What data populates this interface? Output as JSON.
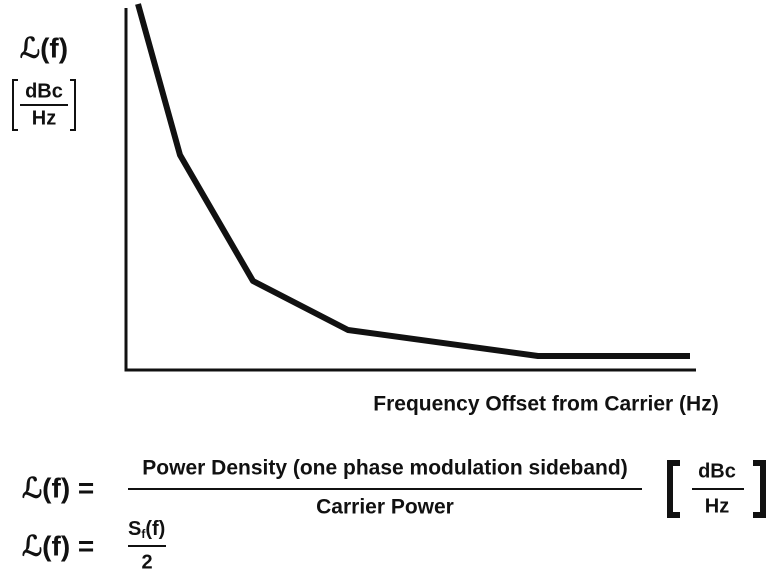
{
  "axis": {
    "y_label": "ℒ(f)",
    "y_unit_num": "dBc",
    "y_unit_den": "Hz",
    "x_label": "Frequency Offset from Carrier (Hz)"
  },
  "equations": [
    {
      "lhs": "ℒ(f) =",
      "numerator": "Power Density (one phase modulation sideband)",
      "denominator": "Carrier Power",
      "unit_num": "dBc",
      "unit_den": "Hz"
    },
    {
      "lhs": "ℒ(f) =",
      "numerator_symbol": "S",
      "numerator_subscript": "f",
      "numerator_arg": "(f)",
      "denominator": "2"
    }
  ]
}
